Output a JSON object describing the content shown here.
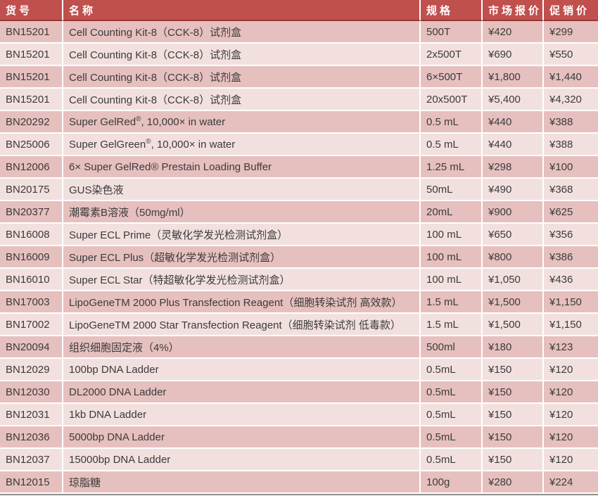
{
  "table": {
    "colors": {
      "header_bg": "#C0504D",
      "header_text": "#FFFFFF",
      "header_border": "#943634",
      "row_odd_bg": "#E6C0BE",
      "row_even_bg": "#F2E0DF",
      "body_text": "#3B3B3B",
      "bottom_border": "#8C8C8C"
    },
    "headers": [
      "货号",
      "名称",
      "规格",
      "市场报价",
      "促销价"
    ],
    "rows": [
      {
        "code": "BN15201",
        "name": "Cell Counting Kit-8（CCK-8）试剂盒",
        "spec": "500T",
        "market": "¥420",
        "promo": "¥299"
      },
      {
        "code": "BN15201",
        "name": "Cell Counting Kit-8（CCK-8）试剂盒",
        "spec": "2x500T",
        "market": "¥690",
        "promo": "¥550"
      },
      {
        "code": "BN15201",
        "name": "Cell Counting Kit-8（CCK-8）试剂盒",
        "spec": "6×500T",
        "market": "¥1,800",
        "promo": "¥1,440"
      },
      {
        "code": "BN15201",
        "name": "Cell Counting Kit-8（CCK-8）试剂盒",
        "spec": "20x500T",
        "market": "¥5,400",
        "promo": "¥4,320"
      },
      {
        "code": "BN20292",
        "name": "Super GelRed",
        "name_sup": "®",
        "name_rest": ", 10,000× in water",
        "spec": "0.5 mL",
        "market": "¥440",
        "promo": "¥388"
      },
      {
        "code": "BN25006",
        "name": "Super GelGreen",
        "name_sup": "®",
        "name_rest": ", 10,000× in water",
        "spec": "0.5 mL",
        "market": "¥440",
        "promo": "¥388"
      },
      {
        "code": "BN12006",
        "name": "6× Super GelRed® Prestain Loading Buffer",
        "spec": "1.25 mL",
        "market": "¥298",
        "promo": "¥100"
      },
      {
        "code": "BN20175",
        "name": "GUS染色液",
        "spec": "50mL",
        "market": "¥490",
        "promo": "¥368"
      },
      {
        "code": "BN20377",
        "name": "潮霉素B溶液（50mg/ml）",
        "spec": "20mL",
        "market": "¥900",
        "promo": "¥625"
      },
      {
        "code": "BN16008",
        "name": "Super ECL Prime（灵敏化学发光检测试剂盒）",
        "spec": "100 mL",
        "market": "¥650",
        "promo": "¥356"
      },
      {
        "code": "BN16009",
        "name": "Super ECL Plus（超敏化学发光检测试剂盒）",
        "spec": "100 mL",
        "market": "¥800",
        "promo": "¥386"
      },
      {
        "code": "BN16010",
        "name": "Super ECL Star（特超敏化学发光检测试剂盒）",
        "spec": "100 mL",
        "market": "¥1,050",
        "promo": "¥436"
      },
      {
        "code": "BN17003",
        "name": "LipoGeneTM 2000 Plus Transfection Reagent（细胞转染试剂 高效款）",
        "spec": "1.5 mL",
        "market": "¥1,500",
        "promo": "¥1,150"
      },
      {
        "code": "BN17002",
        "name": "LipoGeneTM 2000 Star Transfection Reagent（细胞转染试剂 低毒款）",
        "spec": "1.5 mL",
        "market": "¥1,500",
        "promo": "¥1,150"
      },
      {
        "code": "BN20094",
        "name": "组织细胞固定液（4%）",
        "spec": "500ml",
        "market": "¥180",
        "promo": "¥123"
      },
      {
        "code": "BN12029",
        "name": "100bp DNA Ladder",
        "spec": "0.5mL",
        "market": "¥150",
        "promo": "¥120"
      },
      {
        "code": "BN12030",
        "name": "DL2000 DNA Ladder",
        "spec": "0.5mL",
        "market": "¥150",
        "promo": "¥120"
      },
      {
        "code": "BN12031",
        "name": "1kb DNA Ladder",
        "spec": "0.5mL",
        "market": "¥150",
        "promo": "¥120"
      },
      {
        "code": "BN12036",
        "name": "5000bp DNA Ladder",
        "spec": "0.5mL",
        "market": "¥150",
        "promo": "¥120"
      },
      {
        "code": "BN12037",
        "name": "15000bp DNA Ladder",
        "spec": "0.5mL",
        "market": "¥150",
        "promo": "¥120"
      },
      {
        "code": "BN12015",
        "name": "琼脂糖",
        "spec": "100g",
        "market": "¥280",
        "promo": "¥224"
      }
    ]
  }
}
